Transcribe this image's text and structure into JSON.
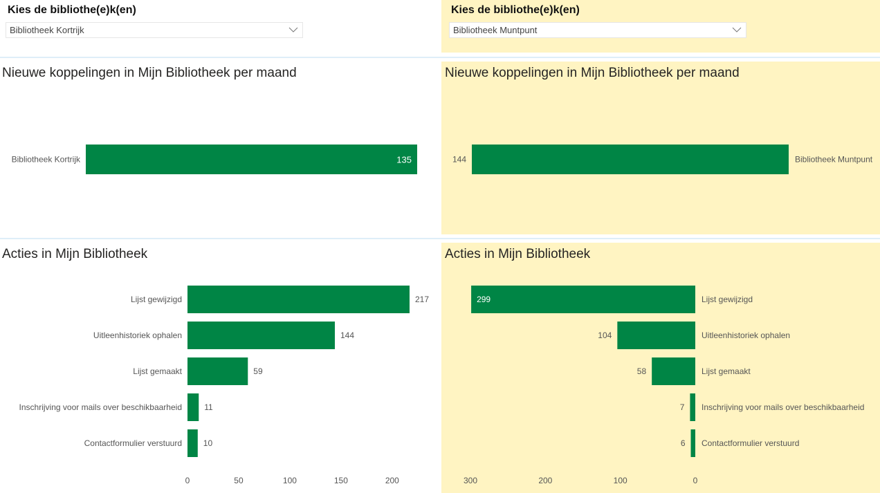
{
  "colors": {
    "bar": "#008545",
    "panel_yellow": "#fff4c2",
    "separator": "#deeef8"
  },
  "left": {
    "slicer": {
      "title": "Kies de bibliothe(e)k(en)",
      "selected": "Bibliotheek Kortrijk",
      "icon": "chevron-down-icon"
    }
  },
  "right": {
    "slicer": {
      "title": "Kies de bibliothe(e)k(en)",
      "selected": "Bibliotheek Muntpunt",
      "icon": "chevron-down-icon"
    }
  },
  "chart_data": [
    {
      "id": "left-koppelingen",
      "type": "bar",
      "orientation": "horizontal",
      "title": "Nieuwe koppelingen in Mijn Bibliotheek per maand",
      "categories": [
        "Bibliotheek Kortrijk"
      ],
      "values": [
        135
      ],
      "data_label_position": "inside-end",
      "xlim": [
        0,
        135
      ]
    },
    {
      "id": "right-koppelingen",
      "type": "bar",
      "orientation": "horizontal-reversed",
      "title": "Nieuwe koppelingen in Mijn Bibliotheek per maand",
      "categories": [
        "Bibliotheek Muntpunt"
      ],
      "values": [
        144
      ],
      "data_label_position": "outside-end",
      "xlim": [
        0,
        144
      ]
    },
    {
      "id": "left-acties",
      "type": "bar",
      "orientation": "horizontal",
      "title": "Acties in Mijn Bibliotheek",
      "categories": [
        "Lijst gewijzigd",
        "Uitleenhistoriek ophalen",
        "Lijst gemaakt",
        "Inschrijving voor mails over beschikbaarheid",
        "Contactformulier verstuurd"
      ],
      "values": [
        217,
        144,
        59,
        11,
        10
      ],
      "xticks": [
        0,
        50,
        100,
        150,
        200
      ],
      "xlim": [
        0,
        220
      ]
    },
    {
      "id": "right-acties",
      "type": "bar",
      "orientation": "horizontal-reversed",
      "title": "Acties in Mijn Bibliotheek",
      "categories": [
        "Lijst gewijzigd",
        "Uitleenhistoriek ophalen",
        "Lijst gemaakt",
        "Inschrijving voor mails over beschikbaarheid",
        "Contactformulier verstuurd"
      ],
      "values": [
        299,
        104,
        58,
        7,
        6
      ],
      "xticks": [
        300,
        200,
        100,
        0
      ],
      "xlim": [
        0,
        300
      ]
    }
  ]
}
